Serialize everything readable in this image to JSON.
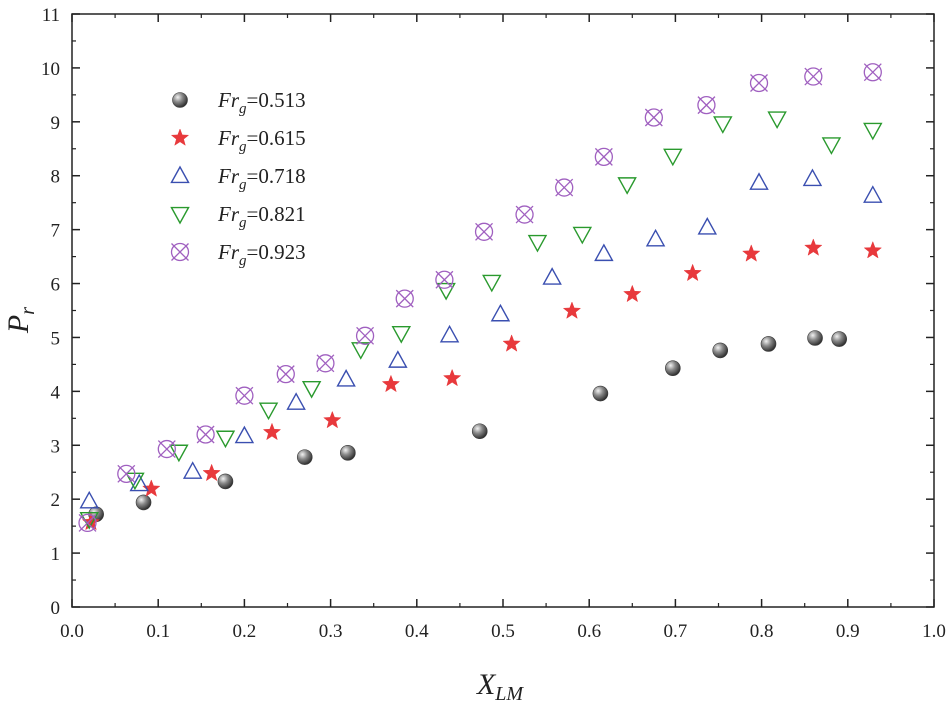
{
  "chart_data": {
    "type": "scatter",
    "title": "",
    "xlabel": {
      "main": "X",
      "sub": "LM"
    },
    "ylabel": {
      "main": "P",
      "sub": "r"
    },
    "xlim": [
      0,
      1.0
    ],
    "ylim": [
      0,
      11
    ],
    "xticks": [
      "0.0",
      "0.1",
      "0.2",
      "0.3",
      "0.4",
      "0.5",
      "0.6",
      "0.7",
      "0.8",
      "0.9",
      "1.0"
    ],
    "yticks": [
      "0",
      "1",
      "2",
      "3",
      "4",
      "5",
      "6",
      "7",
      "8",
      "9",
      "10",
      "11"
    ],
    "grid": false,
    "legend_position": "top-left",
    "series": [
      {
        "name": "Frg=0.513",
        "label_main": "Fr",
        "label_sub": "g",
        "label_value": "=0.513",
        "marker": "sphere",
        "color": "#666666",
        "points": [
          [
            0.028,
            1.72
          ],
          [
            0.083,
            1.94
          ],
          [
            0.178,
            2.33
          ],
          [
            0.27,
            2.78
          ],
          [
            0.32,
            2.86
          ],
          [
            0.473,
            3.26
          ],
          [
            0.613,
            3.96
          ],
          [
            0.697,
            4.43
          ],
          [
            0.752,
            4.76
          ],
          [
            0.808,
            4.88
          ],
          [
            0.862,
            4.99
          ],
          [
            0.89,
            4.97
          ]
        ]
      },
      {
        "name": "Frg=0.615",
        "label_main": "Fr",
        "label_sub": "g",
        "label_value": "=0.615",
        "marker": "star",
        "color": "#e8393c",
        "points": [
          [
            0.022,
            1.57
          ],
          [
            0.092,
            2.19
          ],
          [
            0.162,
            2.48
          ],
          [
            0.232,
            3.24
          ],
          [
            0.302,
            3.46
          ],
          [
            0.37,
            4.13
          ],
          [
            0.441,
            4.24
          ],
          [
            0.51,
            4.88
          ],
          [
            0.58,
            5.49
          ],
          [
            0.65,
            5.8
          ],
          [
            0.72,
            6.19
          ],
          [
            0.788,
            6.55
          ],
          [
            0.86,
            6.66
          ],
          [
            0.929,
            6.61
          ]
        ]
      },
      {
        "name": "Frg=0.718",
        "label_main": "Fr",
        "label_sub": "g",
        "label_value": "=0.718",
        "marker": "triangle-up",
        "color": "#3a4fb0",
        "points": [
          [
            0.02,
            1.96
          ],
          [
            0.078,
            2.28
          ],
          [
            0.14,
            2.51
          ],
          [
            0.2,
            3.17
          ],
          [
            0.26,
            3.79
          ],
          [
            0.318,
            4.22
          ],
          [
            0.378,
            4.57
          ],
          [
            0.438,
            5.04
          ],
          [
            0.497,
            5.43
          ],
          [
            0.557,
            6.11
          ],
          [
            0.617,
            6.55
          ],
          [
            0.677,
            6.82
          ],
          [
            0.737,
            7.04
          ],
          [
            0.797,
            7.87
          ],
          [
            0.859,
            7.94
          ],
          [
            0.929,
            7.63
          ]
        ]
      },
      {
        "name": "Frg=0.821",
        "label_main": "Fr",
        "label_sub": "g",
        "label_value": "=0.821",
        "marker": "triangle-down",
        "color": "#2a9a2e",
        "points": [
          [
            0.02,
            1.63
          ],
          [
            0.073,
            2.36
          ],
          [
            0.124,
            2.88
          ],
          [
            0.178,
            3.14
          ],
          [
            0.228,
            3.66
          ],
          [
            0.278,
            4.06
          ],
          [
            0.335,
            4.78
          ],
          [
            0.382,
            5.08
          ],
          [
            0.434,
            5.88
          ],
          [
            0.487,
            6.03
          ],
          [
            0.54,
            6.77
          ],
          [
            0.592,
            6.92
          ],
          [
            0.644,
            7.84
          ],
          [
            0.697,
            8.37
          ],
          [
            0.755,
            8.97
          ],
          [
            0.818,
            9.06
          ],
          [
            0.881,
            8.58
          ],
          [
            0.929,
            8.85
          ]
        ]
      },
      {
        "name": "Frg=0.923",
        "label_main": "Fr",
        "label_sub": "g",
        "label_value": "=0.923",
        "marker": "circle-x",
        "color": "#a060c0",
        "points": [
          [
            0.018,
            1.56
          ],
          [
            0.063,
            2.47
          ],
          [
            0.11,
            2.93
          ],
          [
            0.155,
            3.2
          ],
          [
            0.2,
            3.92
          ],
          [
            0.248,
            4.32
          ],
          [
            0.294,
            4.52
          ],
          [
            0.34,
            5.03
          ],
          [
            0.386,
            5.72
          ],
          [
            0.432,
            6.07
          ],
          [
            0.478,
            6.96
          ],
          [
            0.525,
            7.28
          ],
          [
            0.571,
            7.78
          ],
          [
            0.617,
            8.35
          ],
          [
            0.675,
            9.08
          ],
          [
            0.736,
            9.31
          ],
          [
            0.797,
            9.72
          ],
          [
            0.86,
            9.84
          ],
          [
            0.929,
            9.92
          ]
        ]
      }
    ]
  }
}
